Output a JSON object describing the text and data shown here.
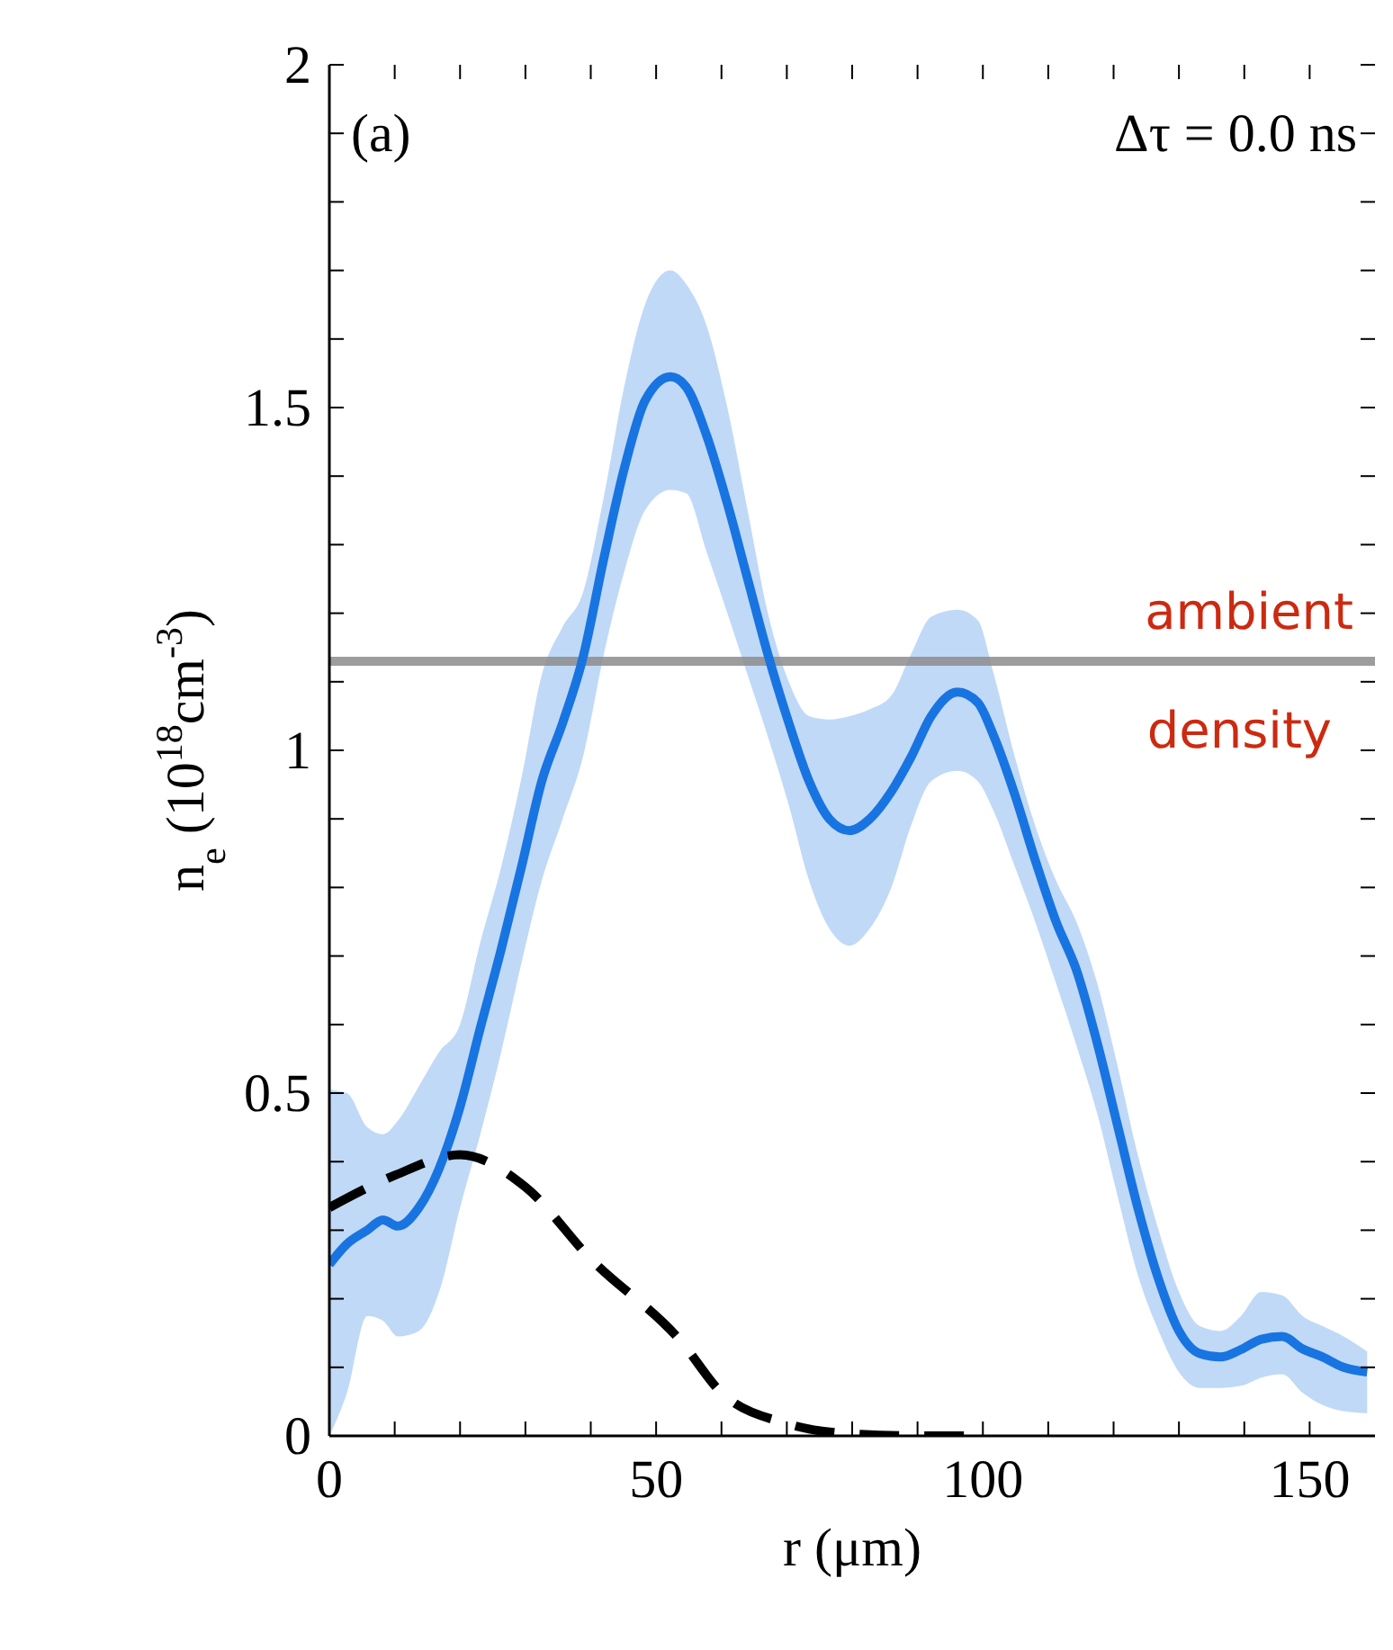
{
  "chart_data": {
    "type": "line",
    "xlabel": "r (μm)",
    "ylabel": "n$_{e}$ (10$^{18}$cm$^{-3}$)",
    "annotations": [
      "(a)",
      "Δτ = 0.0 ns"
    ],
    "xlim": [
      0,
      160
    ],
    "ylim": [
      0,
      2
    ],
    "xticks": [
      0,
      {
        "value": 10,
        "label": null
      },
      {
        "value": 20,
        "label": null
      },
      {
        "value": 30,
        "label": null
      },
      {
        "value": 40,
        "label": null
      },
      50,
      {
        "value": 60,
        "label": null
      },
      {
        "value": 70,
        "label": null
      },
      {
        "value": 80,
        "label": null
      },
      {
        "value": 90,
        "label": null
      },
      100,
      {
        "value": 110,
        "label": null
      },
      {
        "value": 120,
        "label": null
      },
      {
        "value": 130,
        "label": null
      },
      {
        "value": 140,
        "label": null
      },
      150
    ],
    "yticks": [
      0,
      {
        "value": 0.1,
        "label": null
      },
      {
        "value": 0.2,
        "label": null
      },
      {
        "value": 0.3,
        "label": null
      },
      {
        "value": 0.4,
        "label": null
      },
      0.5,
      {
        "value": 0.6,
        "label": null
      },
      {
        "value": 0.7,
        "label": null
      },
      {
        "value": 0.8,
        "label": null
      },
      {
        "value": 0.9,
        "label": null
      },
      1,
      {
        "value": 1.1,
        "label": null
      },
      {
        "value": 1.2,
        "label": null
      },
      {
        "value": 1.3,
        "label": null
      },
      {
        "value": 1.4,
        "label": null
      },
      1.5,
      {
        "value": 1.6,
        "label": null
      },
      {
        "value": 1.7,
        "label": null
      },
      {
        "value": 1.8,
        "label": null
      },
      {
        "value": 1.9,
        "label": null
      },
      2
    ],
    "marker": "none",
    "ref_lines": [
      {
        "axis": "y",
        "value": 1.13,
        "label": "ambient density",
        "color": "#8c8c8c"
      }
    ],
    "series": [
      {
        "color": "#1874e0",
        "line_style": "solid",
        "x": [
          0,
          2.7,
          5.8,
          8.2,
          10.5,
          13.7,
          16.8,
          20,
          23.1,
          26.3,
          29.4,
          32.5,
          35.7,
          38.8,
          42,
          45.1,
          48.3,
          52.2,
          54.6,
          57.7,
          60.9,
          64,
          67.1,
          70.3,
          73.4,
          76.5,
          79.6,
          82.7,
          86,
          89,
          92.1,
          96.1,
          99.2,
          101.7,
          104.9,
          108,
          111.2,
          114.3,
          117.5,
          120.6,
          123.7,
          126.9,
          130,
          133.2,
          136.3,
          139.5,
          142.6,
          145.8,
          148.9,
          152,
          155.2,
          158.8
        ],
        "values": [
          0.25,
          0.28,
          0.3,
          0.315,
          0.306,
          0.333,
          0.39,
          0.48,
          0.595,
          0.71,
          0.83,
          0.955,
          1.04,
          1.135,
          1.28,
          1.41,
          1.51,
          1.545,
          1.53,
          1.46,
          1.36,
          1.25,
          1.14,
          1.04,
          0.955,
          0.9,
          0.883,
          0.9,
          0.94,
          0.99,
          1.05,
          1.085,
          1.07,
          1.02,
          0.935,
          0.84,
          0.75,
          0.68,
          0.573,
          0.453,
          0.333,
          0.228,
          0.153,
          0.12,
          0.115,
          0.126,
          0.141,
          0.145,
          0.127,
          0.115,
          0.1,
          0.093
        ],
        "upper": [
          0.505,
          0.5,
          0.45,
          0.44,
          0.46,
          0.51,
          0.56,
          0.6,
          0.72,
          0.83,
          0.96,
          1.11,
          1.18,
          1.23,
          1.37,
          1.53,
          1.65,
          1.7,
          1.68,
          1.62,
          1.5,
          1.35,
          1.2,
          1.1,
          1.05,
          1.045,
          1.05,
          1.06,
          1.08,
          1.14,
          1.195,
          1.205,
          1.19,
          1.11,
          0.99,
          0.89,
          0.81,
          0.75,
          0.66,
          0.54,
          0.41,
          0.3,
          0.21,
          0.16,
          0.153,
          0.175,
          0.21,
          0.205,
          0.175,
          0.16,
          0.145,
          0.123
        ],
        "lower": [
          0,
          0.063,
          0.175,
          0.168,
          0.145,
          0.153,
          0.21,
          0.333,
          0.44,
          0.56,
          0.69,
          0.81,
          0.9,
          0.99,
          1.14,
          1.26,
          1.35,
          1.38,
          1.375,
          1.29,
          1.2,
          1.11,
          1.02,
          0.92,
          0.81,
          0.74,
          0.715,
          0.74,
          0.8,
          0.89,
          0.955,
          0.97,
          0.955,
          0.91,
          0.83,
          0.75,
          0.66,
          0.57,
          0.47,
          0.35,
          0.235,
          0.153,
          0.093,
          0.07,
          0.07,
          0.073,
          0.085,
          0.09,
          0.063,
          0.045,
          0.036,
          0.033
        ]
      },
      {
        "color": "#000000",
        "line_style": "dashed",
        "x": [
          0,
          10,
          20,
          30,
          40,
          53.8,
          60,
          70,
          80,
          90,
          100
        ],
        "values": [
          0.333,
          0.38,
          0.41,
          0.363,
          0.258,
          0.138,
          0.063,
          0.018,
          0.003,
          0,
          0
        ]
      }
    ]
  }
}
